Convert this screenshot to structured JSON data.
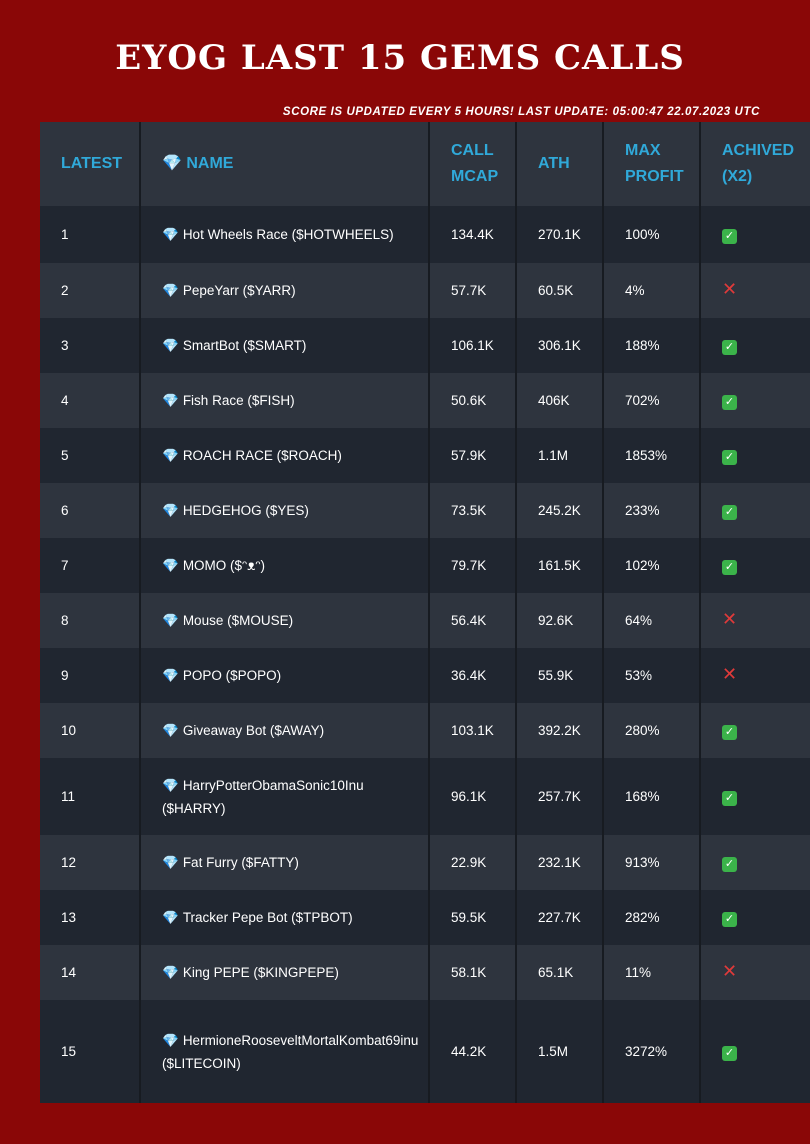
{
  "title": "EYOG LAST 15 GEMS CALLS",
  "update_note": "SCORE IS UPDATED EVERY 5 HOURS! LAST UPDATE: 05:00:47 22.07.2023 UTC",
  "headers": [
    "LATEST",
    "💎 NAME",
    "CALL MCAP",
    "ATH",
    "MAX PROFIT",
    "ACHIVED (x2)"
  ],
  "icons": {
    "gem": "gem-icon",
    "ok": "check-mark-icon",
    "no": "cross-mark-icon"
  },
  "colors": {
    "background": "#8a0707",
    "header_text": "#30a9d9",
    "row_odd": "#202630",
    "row_even": "#2e343e"
  },
  "rows": [
    {
      "latest": "1",
      "name": "Hot Wheels Race ($HOTWHEELS)",
      "mcap": "134.4K",
      "ath": "270.1K",
      "profit": "100%",
      "achived": true
    },
    {
      "latest": "2",
      "name": "PepeYarr ($YARR)",
      "mcap": "57.7K",
      "ath": "60.5K",
      "profit": "4%",
      "achived": false
    },
    {
      "latest": "3",
      "name": "SmartBot ($SMART)",
      "mcap": "106.1K",
      "ath": "306.1K",
      "profit": "188%",
      "achived": true
    },
    {
      "latest": "4",
      "name": "Fish Race ($FISH)",
      "mcap": "50.6K",
      "ath": "406K",
      "profit": "702%",
      "achived": true
    },
    {
      "latest": "5",
      "name": "ROACH RACE ($ROACH)",
      "mcap": "57.9K",
      "ath": "1.1M",
      "profit": "1853%",
      "achived": true
    },
    {
      "latest": "6",
      "name": "HEDGEHOG ($YES)",
      "mcap": "73.5K",
      "ath": "245.2K",
      "profit": "233%",
      "achived": true
    },
    {
      "latest": "7",
      "name": "MOMO ($ᵔᴥᵔ)",
      "mcap": "79.7K",
      "ath": "161.5K",
      "profit": "102%",
      "achived": true
    },
    {
      "latest": "8",
      "name": "Mouse ($MOUSE)",
      "mcap": "56.4K",
      "ath": "92.6K",
      "profit": "64%",
      "achived": false
    },
    {
      "latest": "9",
      "name": "POPO ($POPO)",
      "mcap": "36.4K",
      "ath": "55.9K",
      "profit": "53%",
      "achived": false
    },
    {
      "latest": "10",
      "name": "Giveaway Bot ($AWAY)",
      "mcap": "103.1K",
      "ath": "392.2K",
      "profit": "280%",
      "achived": true
    },
    {
      "latest": "11",
      "name": "HarryPotterObamaSonic10Inu ($HARRY)",
      "mcap": "96.1K",
      "ath": "257.7K",
      "profit": "168%",
      "achived": true
    },
    {
      "latest": "12",
      "name": "Fat Furry ($FATTY)",
      "mcap": "22.9K",
      "ath": "232.1K",
      "profit": "913%",
      "achived": true
    },
    {
      "latest": "13",
      "name": "Tracker Pepe Bot ($TPBOT)",
      "mcap": "59.5K",
      "ath": "227.7K",
      "profit": "282%",
      "achived": true
    },
    {
      "latest": "14",
      "name": "King PEPE ($KINGPEPE)",
      "mcap": "58.1K",
      "ath": "65.1K",
      "profit": "11%",
      "achived": false
    },
    {
      "latest": "15",
      "name": "HermioneRooseveltMortalKombat69inu ($LITECOIN)",
      "mcap": "44.2K",
      "ath": "1.5M",
      "profit": "3272%",
      "achived": true
    }
  ]
}
